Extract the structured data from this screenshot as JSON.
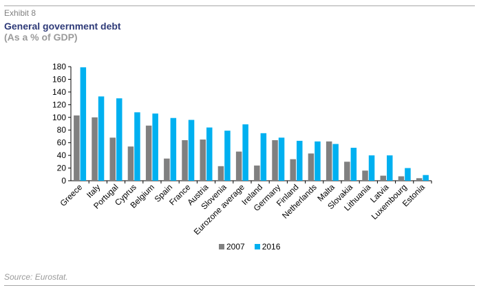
{
  "header": {
    "exhibit": "Exhibit 8",
    "title": "General government debt",
    "subtitle": "(As a % of GDP)"
  },
  "footer": {
    "source": "Source: Eurostat."
  },
  "chart_data": {
    "type": "bar",
    "categories": [
      "Greece",
      "Italy",
      "Portugal",
      "Cyprus",
      "Belgium",
      "Spain",
      "France",
      "Austria",
      "Slovenia",
      "Eurozone average",
      "Ireland",
      "Germany",
      "Finland",
      "Netherlands",
      "Malta",
      "Slovakia",
      "Lithuania",
      "Latvia",
      "Luxembourg",
      "Estonia"
    ],
    "series": [
      {
        "name": "2007",
        "color": "#808080",
        "values": [
          103,
          100,
          68,
          54,
          87,
          35,
          64,
          65,
          23,
          46,
          24,
          64,
          34,
          43,
          62,
          30,
          16,
          8,
          7,
          4
        ]
      },
      {
        "name": "2016",
        "color": "#00b0f0",
        "values": [
          179,
          133,
          130,
          108,
          106,
          99,
          96,
          84,
          79,
          89,
          75,
          68,
          63,
          62,
          58,
          52,
          40,
          40,
          20,
          9
        ]
      }
    ],
    "yticks": [
      0,
      20,
      40,
      60,
      80,
      100,
      120,
      140,
      160,
      180
    ],
    "ylim": [
      0,
      180
    ],
    "grid": false,
    "legend": "bottom-center"
  }
}
